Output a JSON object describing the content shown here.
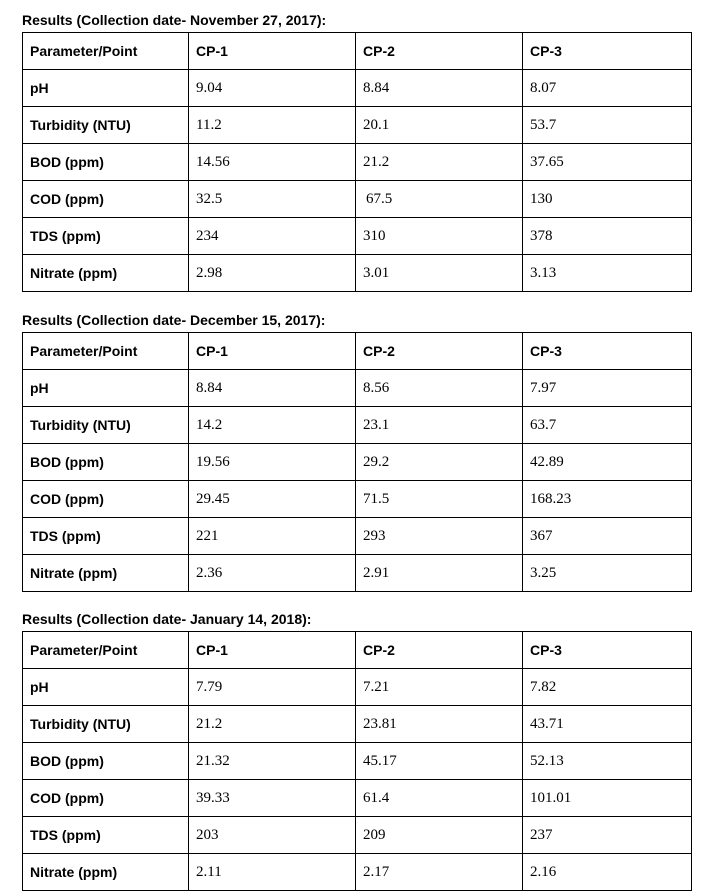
{
  "tables": [
    {
      "caption": "Results (Collection date- November 27, 2017):",
      "headers": [
        "Parameter/Point",
        "CP-1",
        "CP-2",
        "CP-3"
      ],
      "rows": [
        {
          "param": "pH",
          "values": [
            "9.04",
            "8.84",
            "8.07"
          ]
        },
        {
          "param": "Turbidity (NTU)",
          "values": [
            "11.2",
            "20.1",
            "53.7"
          ]
        },
        {
          "param": "BOD (ppm)",
          "values": [
            "14.56",
            "21.2",
            "37.65"
          ]
        },
        {
          "param": "COD (ppm)",
          "values": [
            "32.5",
            "67.5",
            "130"
          ]
        },
        {
          "param": "TDS (ppm)",
          "values": [
            "234",
            "310",
            "378"
          ]
        },
        {
          "param": "Nitrate (ppm)",
          "values": [
            "2.98",
            "3.01",
            "3.13"
          ]
        }
      ]
    },
    {
      "caption": "Results (Collection date- December 15, 2017):",
      "headers": [
        "Parameter/Point",
        "CP-1",
        "CP-2",
        "CP-3"
      ],
      "rows": [
        {
          "param": "pH",
          "values": [
            "8.84",
            "8.56",
            "7.97"
          ]
        },
        {
          "param": "Turbidity (NTU)",
          "values": [
            "14.2",
            "23.1",
            "63.7"
          ]
        },
        {
          "param": "BOD (ppm)",
          "values": [
            "19.56",
            "29.2",
            "42.89"
          ]
        },
        {
          "param": "COD (ppm)",
          "values": [
            "29.45",
            "71.5",
            "168.23"
          ]
        },
        {
          "param": "TDS (ppm)",
          "values": [
            "221",
            "293",
            "367"
          ]
        },
        {
          "param": "Nitrate (ppm)",
          "values": [
            "2.36",
            "2.91",
            "3.25"
          ]
        }
      ]
    },
    {
      "caption": "Results (Collection date- January 14, 2018):",
      "headers": [
        "Parameter/Point",
        "CP-1",
        "CP-2",
        "CP-3"
      ],
      "rows": [
        {
          "param": "pH",
          "values": [
            "7.79",
            "7.21",
            "7.82"
          ]
        },
        {
          "param": "Turbidity (NTU)",
          "values": [
            "21.2",
            "23.81",
            "43.71"
          ]
        },
        {
          "param": "BOD (ppm)",
          "values": [
            "21.32",
            "45.17",
            "52.13"
          ]
        },
        {
          "param": "COD (ppm)",
          "values": [
            "39.33",
            "61.4",
            "101.01"
          ]
        },
        {
          "param": "TDS (ppm)",
          "values": [
            "203",
            "209",
            "237"
          ]
        },
        {
          "param": "Nitrate (ppm)",
          "values": [
            "2.11",
            "2.17",
            "2.16"
          ]
        }
      ]
    }
  ]
}
